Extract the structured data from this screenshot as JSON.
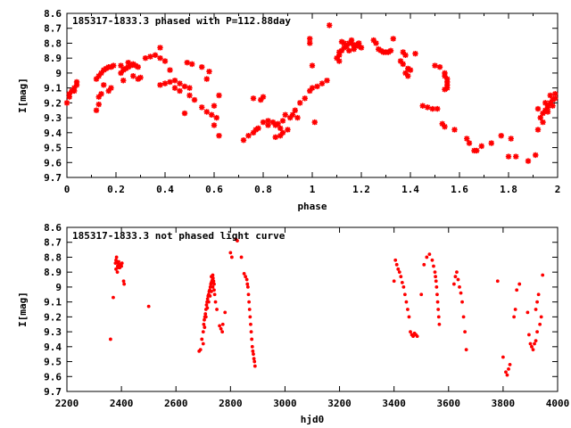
{
  "chart_data": [
    {
      "type": "scatter",
      "title": "185317-1833.3 phased with P=112.88day",
      "xlabel": "phase",
      "ylabel": "I[mag]",
      "xlim": [
        0,
        2
      ],
      "ylim": [
        8.6,
        9.7
      ],
      "y_inverted": true,
      "grid": false,
      "marker": "star",
      "color": "#ff0000",
      "xticks": [
        "0",
        "0.2",
        "0.4",
        "0.6",
        "0.8",
        "1",
        "1.2",
        "1.4",
        "1.6",
        "1.8",
        "2"
      ],
      "yticks": [
        "8.6",
        "8.7",
        "8.8",
        "8.9",
        "9",
        "9.1",
        "9.2",
        "9.3",
        "9.4",
        "9.5",
        "9.6",
        "9.7"
      ],
      "points": [
        [
          0.0,
          9.2
        ],
        [
          0.01,
          9.16
        ],
        [
          0.01,
          9.14
        ],
        [
          0.02,
          9.12
        ],
        [
          0.03,
          9.1
        ],
        [
          0.04,
          9.08
        ],
        [
          0.04,
          9.06
        ],
        [
          0.03,
          9.12
        ],
        [
          0.12,
          9.04
        ],
        [
          0.13,
          9.02
        ],
        [
          0.14,
          9.0
        ],
        [
          0.15,
          8.98
        ],
        [
          0.16,
          8.97
        ],
        [
          0.17,
          8.96
        ],
        [
          0.18,
          8.96
        ],
        [
          0.19,
          8.95
        ],
        [
          0.13,
          9.16
        ],
        [
          0.14,
          9.14
        ],
        [
          0.15,
          9.08
        ],
        [
          0.12,
          9.25
        ],
        [
          0.13,
          9.21
        ],
        [
          0.17,
          9.12
        ],
        [
          0.18,
          9.1
        ],
        [
          0.22,
          9.0
        ],
        [
          0.23,
          8.98
        ],
        [
          0.24,
          8.97
        ],
        [
          0.25,
          8.96
        ],
        [
          0.26,
          8.95
        ],
        [
          0.27,
          8.94
        ],
        [
          0.28,
          8.95
        ],
        [
          0.29,
          8.96
        ],
        [
          0.22,
          8.95
        ],
        [
          0.25,
          8.93
        ],
        [
          0.27,
          9.02
        ],
        [
          0.29,
          9.04
        ],
        [
          0.3,
          9.03
        ],
        [
          0.23,
          9.05
        ],
        [
          0.32,
          8.9
        ],
        [
          0.34,
          8.89
        ],
        [
          0.36,
          8.88
        ],
        [
          0.38,
          8.83
        ],
        [
          0.38,
          8.9
        ],
        [
          0.38,
          9.08
        ],
        [
          0.4,
          9.07
        ],
        [
          0.42,
          9.06
        ],
        [
          0.44,
          9.05
        ],
        [
          0.46,
          9.07
        ],
        [
          0.48,
          9.09
        ],
        [
          0.5,
          9.1
        ],
        [
          0.4,
          8.92
        ],
        [
          0.42,
          8.98
        ],
        [
          0.44,
          9.1
        ],
        [
          0.46,
          9.12
        ],
        [
          0.5,
          9.15
        ],
        [
          0.52,
          9.18
        ],
        [
          0.48,
          9.27
        ],
        [
          0.49,
          8.93
        ],
        [
          0.51,
          8.94
        ],
        [
          0.55,
          8.96
        ],
        [
          0.58,
          8.99
        ],
        [
          0.57,
          9.04
        ],
        [
          0.55,
          9.23
        ],
        [
          0.57,
          9.26
        ],
        [
          0.59,
          9.28
        ],
        [
          0.61,
          9.3
        ],
        [
          0.6,
          9.22
        ],
        [
          0.62,
          9.15
        ],
        [
          0.6,
          9.35
        ],
        [
          0.62,
          9.42
        ],
        [
          0.72,
          9.45
        ],
        [
          0.74,
          9.42
        ],
        [
          0.76,
          9.4
        ],
        [
          0.77,
          9.38
        ],
        [
          0.78,
          9.37
        ],
        [
          0.76,
          9.17
        ],
        [
          0.79,
          9.18
        ],
        [
          0.8,
          9.16
        ],
        [
          0.8,
          9.33
        ],
        [
          0.82,
          9.32
        ],
        [
          0.84,
          9.33
        ],
        [
          0.85,
          9.35
        ],
        [
          0.86,
          9.34
        ],
        [
          0.87,
          9.37
        ],
        [
          0.88,
          9.32
        ],
        [
          0.89,
          9.28
        ],
        [
          0.82,
          9.35
        ],
        [
          0.85,
          9.43
        ],
        [
          0.87,
          9.42
        ],
        [
          0.88,
          9.4
        ],
        [
          0.9,
          9.38
        ],
        [
          0.91,
          9.3
        ],
        [
          0.92,
          9.28
        ],
        [
          0.94,
          9.3
        ],
        [
          0.93,
          9.25
        ],
        [
          0.95,
          9.2
        ],
        [
          0.97,
          9.17
        ],
        [
          0.99,
          9.12
        ],
        [
          1.0,
          9.1
        ],
        [
          1.02,
          9.09
        ],
        [
          1.04,
          9.07
        ],
        [
          1.06,
          9.05
        ],
        [
          0.99,
          8.77
        ],
        [
          0.99,
          8.8
        ],
        [
          1.0,
          8.95
        ],
        [
          1.01,
          9.33
        ],
        [
          1.07,
          8.68
        ],
        [
          1.1,
          8.9
        ],
        [
          1.11,
          8.88
        ],
        [
          1.12,
          8.85
        ],
        [
          1.13,
          8.83
        ],
        [
          1.14,
          8.82
        ],
        [
          1.15,
          8.8
        ],
        [
          1.16,
          8.8
        ],
        [
          1.17,
          8.82
        ],
        [
          1.11,
          8.86
        ],
        [
          1.13,
          8.8
        ],
        [
          1.15,
          8.85
        ],
        [
          1.17,
          8.84
        ],
        [
          1.18,
          8.81
        ],
        [
          1.19,
          8.8
        ],
        [
          1.12,
          8.79
        ],
        [
          1.16,
          8.78
        ],
        [
          1.19,
          8.82
        ],
        [
          1.2,
          8.83
        ],
        [
          1.11,
          8.92
        ],
        [
          1.25,
          8.78
        ],
        [
          1.26,
          8.8
        ],
        [
          1.27,
          8.84
        ],
        [
          1.28,
          8.85
        ],
        [
          1.29,
          8.86
        ],
        [
          1.3,
          8.86
        ],
        [
          1.31,
          8.86
        ],
        [
          1.32,
          8.85
        ],
        [
          1.33,
          8.77
        ],
        [
          1.36,
          8.92
        ],
        [
          1.37,
          8.94
        ],
        [
          1.38,
          9.0
        ],
        [
          1.39,
          8.97
        ],
        [
          1.39,
          9.02
        ],
        [
          1.37,
          8.86
        ],
        [
          1.38,
          8.88
        ],
        [
          1.4,
          8.98
        ],
        [
          1.42,
          8.87
        ],
        [
          1.45,
          9.22
        ],
        [
          1.47,
          9.23
        ],
        [
          1.49,
          9.24
        ],
        [
          1.51,
          9.24
        ],
        [
          1.5,
          8.95
        ],
        [
          1.52,
          8.96
        ],
        [
          1.54,
          9.0
        ],
        [
          1.54,
          9.02
        ],
        [
          1.55,
          9.04
        ],
        [
          1.55,
          9.06
        ],
        [
          1.55,
          9.08
        ],
        [
          1.55,
          9.1
        ],
        [
          1.54,
          9.11
        ],
        [
          1.53,
          9.34
        ],
        [
          1.54,
          9.36
        ],
        [
          1.58,
          9.38
        ],
        [
          1.63,
          9.44
        ],
        [
          1.64,
          9.47
        ],
        [
          1.66,
          9.52
        ],
        [
          1.67,
          9.52
        ],
        [
          1.69,
          9.49
        ],
        [
          1.73,
          9.47
        ],
        [
          1.77,
          9.42
        ],
        [
          1.8,
          9.56
        ],
        [
          1.81,
          9.44
        ],
        [
          1.83,
          9.56
        ],
        [
          1.88,
          9.59
        ],
        [
          1.91,
          9.55
        ],
        [
          1.92,
          9.38
        ],
        [
          1.93,
          9.3
        ],
        [
          1.94,
          9.27
        ],
        [
          1.95,
          9.25
        ],
        [
          1.96,
          9.22
        ],
        [
          1.97,
          9.2
        ],
        [
          1.98,
          9.18
        ],
        [
          1.99,
          9.17
        ],
        [
          1.92,
          9.24
        ],
        [
          1.94,
          9.33
        ],
        [
          1.96,
          9.26
        ],
        [
          1.98,
          9.22
        ],
        [
          1.99,
          9.14
        ],
        [
          1.97,
          9.15
        ],
        [
          1.95,
          9.2
        ],
        [
          1.96,
          9.23
        ]
      ]
    },
    {
      "type": "scatter",
      "title": "185317-1833.3 not phased light curve",
      "xlabel": "hjd0",
      "ylabel": "I[mag]",
      "xlim": [
        2200,
        4000
      ],
      "ylim": [
        8.6,
        9.7
      ],
      "y_inverted": true,
      "grid": false,
      "marker": "dot",
      "color": "#ff0000",
      "xticks": [
        "2200",
        "2400",
        "2600",
        "2800",
        "3000",
        "3200",
        "3400",
        "3600",
        "3800",
        "4000"
      ],
      "yticks": [
        "8.6",
        "8.7",
        "8.8",
        "8.9",
        "9",
        "9.1",
        "9.2",
        "9.3",
        "9.4",
        "9.5",
        "9.6",
        "9.7"
      ],
      "points": [
        [
          2360,
          9.35
        ],
        [
          2370,
          9.07
        ],
        [
          2378,
          8.84
        ],
        [
          2380,
          8.82
        ],
        [
          2382,
          8.8
        ],
        [
          2384,
          8.83
        ],
        [
          2386,
          8.86
        ],
        [
          2388,
          8.84
        ],
        [
          2390,
          8.83
        ],
        [
          2392,
          8.85
        ],
        [
          2394,
          8.87
        ],
        [
          2396,
          8.86
        ],
        [
          2398,
          8.85
        ],
        [
          2400,
          8.86
        ],
        [
          2402,
          8.84
        ],
        [
          2380,
          8.88
        ],
        [
          2385,
          8.9
        ],
        [
          2390,
          8.87
        ],
        [
          2408,
          8.96
        ],
        [
          2410,
          8.98
        ],
        [
          2500,
          9.13
        ],
        [
          2685,
          9.43
        ],
        [
          2690,
          9.42
        ],
        [
          2695,
          9.35
        ],
        [
          2700,
          9.3
        ],
        [
          2702,
          9.25
        ],
        [
          2704,
          9.22
        ],
        [
          2706,
          9.2
        ],
        [
          2708,
          9.18
        ],
        [
          2710,
          9.15
        ],
        [
          2712,
          9.12
        ],
        [
          2714,
          9.1
        ],
        [
          2716,
          9.08
        ],
        [
          2718,
          9.06
        ],
        [
          2720,
          9.05
        ],
        [
          2722,
          9.03
        ],
        [
          2724,
          9.02
        ],
        [
          2726,
          9.0
        ],
        [
          2728,
          8.98
        ],
        [
          2730,
          8.97
        ],
        [
          2732,
          8.96
        ],
        [
          2734,
          8.95
        ],
        [
          2736,
          8.94
        ],
        [
          2738,
          8.96
        ],
        [
          2740,
          8.98
        ],
        [
          2705,
          9.27
        ],
        [
          2710,
          9.2
        ],
        [
          2715,
          9.14
        ],
        [
          2720,
          9.1
        ],
        [
          2725,
          9.06
        ],
        [
          2730,
          9.03
        ],
        [
          2735,
          9.0
        ],
        [
          2740,
          9.02
        ],
        [
          2742,
          9.05
        ],
        [
          2745,
          9.1
        ],
        [
          2750,
          9.15
        ],
        [
          2700,
          9.38
        ],
        [
          2730,
          8.93
        ],
        [
          2735,
          8.92
        ],
        [
          2760,
          9.26
        ],
        [
          2765,
          9.28
        ],
        [
          2770,
          9.3
        ],
        [
          2772,
          9.25
        ],
        [
          2780,
          9.17
        ],
        [
          2800,
          8.77
        ],
        [
          2805,
          8.8
        ],
        [
          2820,
          8.68
        ],
        [
          2825,
          8.69
        ],
        [
          2840,
          8.8
        ],
        [
          2860,
          8.95
        ],
        [
          2862,
          8.98
        ],
        [
          2864,
          9.0
        ],
        [
          2866,
          9.05
        ],
        [
          2868,
          9.1
        ],
        [
          2870,
          9.15
        ],
        [
          2872,
          9.2
        ],
        [
          2874,
          9.25
        ],
        [
          2876,
          9.3
        ],
        [
          2878,
          9.35
        ],
        [
          2880,
          9.4
        ],
        [
          2882,
          9.43
        ],
        [
          2884,
          9.45
        ],
        [
          2886,
          9.48
        ],
        [
          2888,
          9.5
        ],
        [
          2890,
          9.53
        ],
        [
          2850,
          8.91
        ],
        [
          2855,
          8.93
        ],
        [
          3400,
          8.96
        ],
        [
          3405,
          8.82
        ],
        [
          3410,
          8.85
        ],
        [
          3415,
          8.88
        ],
        [
          3420,
          8.9
        ],
        [
          3425,
          8.93
        ],
        [
          3430,
          8.97
        ],
        [
          3435,
          9.0
        ],
        [
          3440,
          9.05
        ],
        [
          3445,
          9.1
        ],
        [
          3450,
          9.15
        ],
        [
          3455,
          9.2
        ],
        [
          3460,
          9.3
        ],
        [
          3465,
          9.32
        ],
        [
          3470,
          9.33
        ],
        [
          3475,
          9.31
        ],
        [
          3480,
          9.32
        ],
        [
          3485,
          9.33
        ],
        [
          3500,
          9.05
        ],
        [
          3510,
          8.85
        ],
        [
          3520,
          8.8
        ],
        [
          3530,
          8.78
        ],
        [
          3540,
          8.82
        ],
        [
          3545,
          8.86
        ],
        [
          3550,
          8.9
        ],
        [
          3552,
          8.93
        ],
        [
          3554,
          8.96
        ],
        [
          3556,
          9.0
        ],
        [
          3558,
          9.05
        ],
        [
          3560,
          9.1
        ],
        [
          3562,
          9.15
        ],
        [
          3564,
          9.2
        ],
        [
          3566,
          9.25
        ],
        [
          3620,
          8.98
        ],
        [
          3625,
          8.93
        ],
        [
          3630,
          8.9
        ],
        [
          3635,
          8.95
        ],
        [
          3640,
          9.0
        ],
        [
          3645,
          9.04
        ],
        [
          3650,
          9.1
        ],
        [
          3655,
          9.2
        ],
        [
          3660,
          9.3
        ],
        [
          3665,
          9.42
        ],
        [
          3780,
          8.96
        ],
        [
          3800,
          9.47
        ],
        [
          3810,
          9.57
        ],
        [
          3815,
          9.59
        ],
        [
          3820,
          9.55
        ],
        [
          3825,
          9.52
        ],
        [
          3840,
          9.2
        ],
        [
          3845,
          9.15
        ],
        [
          3850,
          9.02
        ],
        [
          3860,
          8.98
        ],
        [
          3890,
          9.17
        ],
        [
          3895,
          9.32
        ],
        [
          3900,
          9.38
        ],
        [
          3905,
          9.4
        ],
        [
          3910,
          9.42
        ],
        [
          3915,
          9.38
        ],
        [
          3920,
          9.36
        ],
        [
          3925,
          9.3
        ],
        [
          3920,
          9.15
        ],
        [
          3925,
          9.1
        ],
        [
          3930,
          9.05
        ],
        [
          3935,
          9.25
        ],
        [
          3940,
          9.2
        ],
        [
          3945,
          8.92
        ]
      ]
    }
  ]
}
